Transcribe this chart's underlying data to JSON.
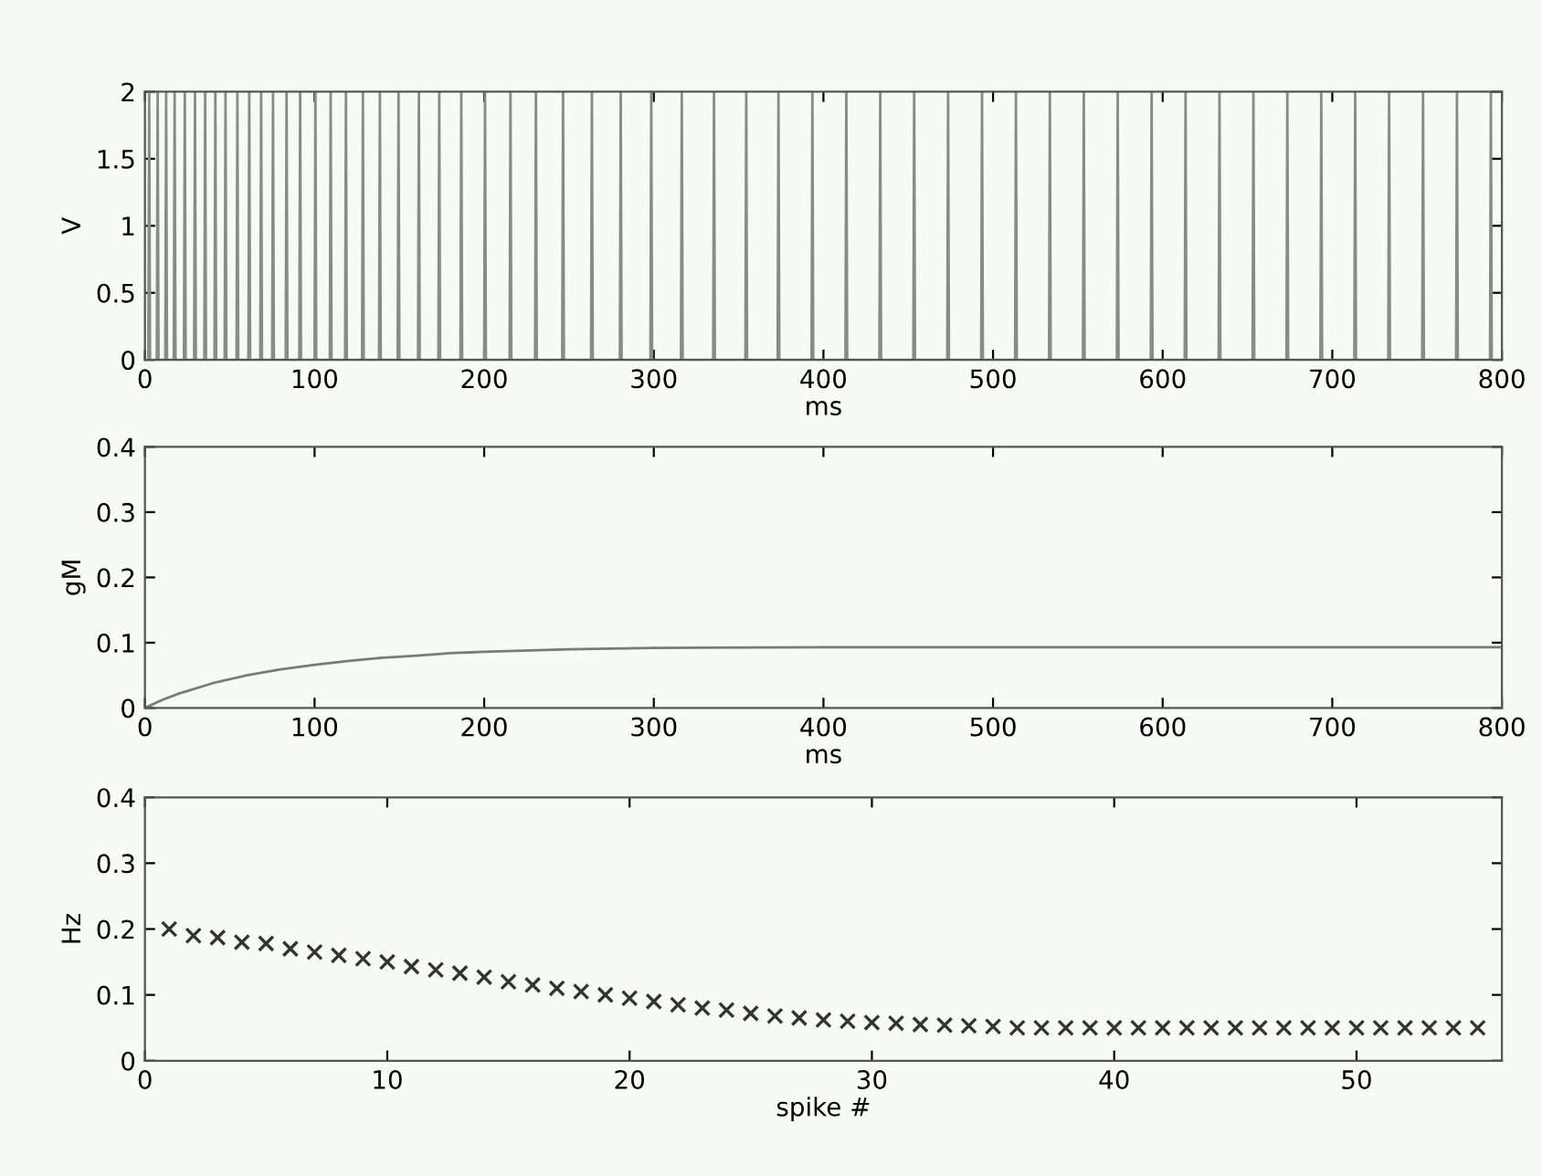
{
  "chart_data": [
    {
      "type": "line",
      "xlabel": "ms",
      "ylabel": "V",
      "xlim": [
        0,
        800
      ],
      "ylim": [
        0,
        2
      ],
      "xticks": [
        0,
        100,
        200,
        300,
        400,
        500,
        600,
        700,
        800
      ],
      "yticks": [
        0,
        {
          "value": 0.5,
          "label": "0.5"
        },
        1,
        {
          "value": 1.5,
          "label": "1.5"
        },
        2
      ],
      "grid": false,
      "marker": "none",
      "series": [
        {
          "color": "#8a8a8a",
          "x": [
            2,
            2.5,
            3,
            7,
            7.5,
            8,
            12,
            12.5,
            13,
            17,
            17.5,
            18,
            23,
            23.5,
            24,
            29,
            29.5,
            30,
            35,
            35.5,
            36,
            41,
            41.5,
            42,
            47,
            47.5,
            48,
            54,
            54.5,
            55,
            61,
            61.5,
            62,
            68,
            68.5,
            69,
            75,
            75.5,
            76,
            83,
            83.5,
            84,
            91,
            91.5,
            92,
            100,
            100.5,
            101,
            109,
            109.5,
            110,
            118,
            118.5,
            119,
            128,
            128.5,
            129,
            138,
            138.5,
            139,
            149,
            149.5,
            150,
            161,
            161.5,
            162,
            173,
            173.5,
            174,
            186,
            186.5,
            187,
            200,
            200.5,
            201,
            215,
            215.5,
            216,
            230,
            230.5,
            231,
            246,
            246.5,
            247,
            263,
            263.5,
            264,
            280,
            280.5,
            281,
            298,
            298.5,
            299,
            316,
            316.5,
            317,
            335,
            335.5,
            336,
            354,
            354.5,
            355,
            373,
            373.5,
            374,
            393,
            393.5,
            394,
            413,
            413.5,
            414,
            433,
            433.5,
            434,
            453,
            453.5,
            454,
            473,
            473.5,
            474,
            493,
            493.5,
            494,
            513,
            513.5,
            514,
            533,
            533.5,
            534,
            553,
            553.5,
            554,
            573,
            573.5,
            574,
            593,
            593.5,
            594,
            613,
            613.5,
            614,
            633,
            633.5,
            634,
            653,
            653.5,
            654,
            673,
            673.5,
            674,
            693,
            693.5,
            694,
            713,
            713.5,
            714,
            733,
            733.5,
            734,
            753,
            753.5,
            754,
            773,
            773.5,
            774,
            793,
            793.5,
            794,
            800
          ],
          "values": [
            0,
            2,
            0,
            0,
            2,
            0,
            0,
            2,
            0,
            0,
            2,
            0,
            0,
            2,
            0,
            0,
            2,
            0,
            0,
            2,
            0,
            0,
            2,
            0,
            0,
            2,
            0,
            0,
            2,
            0,
            0,
            2,
            0,
            0,
            2,
            0,
            0,
            2,
            0,
            0,
            2,
            0,
            0,
            2,
            0,
            0,
            2,
            0,
            0,
            2,
            0,
            0,
            2,
            0,
            0,
            2,
            0,
            0,
            2,
            0,
            0,
            2,
            0,
            0,
            2,
            0,
            0,
            2,
            0,
            0,
            2,
            0,
            0,
            2,
            0,
            0,
            2,
            0,
            0,
            2,
            0,
            0,
            2,
            0,
            0,
            2,
            0,
            0,
            2,
            0,
            0,
            2,
            0,
            0,
            2,
            0,
            0,
            2,
            0,
            0,
            2,
            0,
            0,
            2,
            0,
            0,
            2,
            0,
            0,
            2,
            0,
            0,
            2,
            0,
            0,
            2,
            0,
            0,
            2,
            0,
            0,
            2,
            0,
            0,
            2,
            0,
            0,
            2,
            0,
            0,
            2,
            0,
            0,
            2,
            0,
            0,
            2,
            0,
            0,
            2,
            0,
            0,
            2,
            0,
            0,
            2,
            0,
            0,
            2,
            0,
            0,
            2,
            0,
            0,
            2,
            0,
            0,
            2,
            0,
            0,
            2,
            0,
            0,
            2,
            0,
            0,
            2,
            0,
            0
          ]
        }
      ]
    },
    {
      "type": "line",
      "xlabel": "ms",
      "ylabel": "gM",
      "xlim": [
        0,
        800
      ],
      "ylim": [
        0,
        0.4
      ],
      "xticks": [
        0,
        100,
        200,
        300,
        400,
        500,
        600,
        700,
        800
      ],
      "yticks": [
        0,
        {
          "value": 0.1,
          "label": "0.1"
        },
        {
          "value": 0.2,
          "label": "0.2"
        },
        {
          "value": 0.3,
          "label": "0.3"
        },
        {
          "value": 0.4,
          "label": "0.4"
        }
      ],
      "grid": false,
      "marker": "none",
      "series": [
        {
          "color": "#7a7a7a",
          "x": [
            0,
            10,
            20,
            40,
            60,
            80,
            100,
            120,
            140,
            160,
            180,
            200,
            250,
            300,
            400,
            500,
            600,
            700,
            800
          ],
          "values": [
            0,
            0.012,
            0.022,
            0.038,
            0.05,
            0.059,
            0.066,
            0.072,
            0.077,
            0.08,
            0.084,
            0.086,
            0.09,
            0.092,
            0.093,
            0.093,
            0.093,
            0.093,
            0.093
          ]
        }
      ]
    },
    {
      "type": "scatter",
      "xlabel": "spike #",
      "ylabel": "Hz",
      "xlim": [
        0,
        56
      ],
      "ylim": [
        0,
        0.4
      ],
      "xticks": [
        0,
        10,
        20,
        30,
        40,
        50
      ],
      "yticks": [
        0,
        {
          "value": 0.1,
          "label": "0.1"
        },
        {
          "value": 0.2,
          "label": "0.2"
        },
        {
          "value": 0.3,
          "label": "0.3"
        },
        {
          "value": 0.4,
          "label": "0.4"
        }
      ],
      "grid": false,
      "marker": "cross",
      "series": [
        {
          "color": "#333333",
          "x": [
            1,
            2,
            3,
            4,
            5,
            6,
            7,
            8,
            9,
            10,
            11,
            12,
            13,
            14,
            15,
            16,
            17,
            18,
            19,
            20,
            21,
            22,
            23,
            24,
            25,
            26,
            27,
            28,
            29,
            30,
            31,
            32,
            33,
            34,
            35,
            36,
            37,
            38,
            39,
            40,
            41,
            42,
            43,
            44,
            45,
            46,
            47,
            48,
            49,
            50,
            51,
            52,
            53,
            54,
            55
          ],
          "values": [
            0.2,
            0.19,
            0.187,
            0.18,
            0.178,
            0.17,
            0.165,
            0.16,
            0.155,
            0.15,
            0.143,
            0.138,
            0.133,
            0.127,
            0.12,
            0.115,
            0.11,
            0.105,
            0.1,
            0.095,
            0.09,
            0.085,
            0.08,
            0.077,
            0.072,
            0.068,
            0.065,
            0.062,
            0.06,
            0.058,
            0.057,
            0.055,
            0.054,
            0.053,
            0.052,
            0.05,
            0.05,
            0.05,
            0.05,
            0.05,
            0.05,
            0.05,
            0.05,
            0.05,
            0.05,
            0.05,
            0.05,
            0.05,
            0.05,
            0.05,
            0.05,
            0.05,
            0.05,
            0.05,
            0.05
          ]
        }
      ]
    }
  ]
}
